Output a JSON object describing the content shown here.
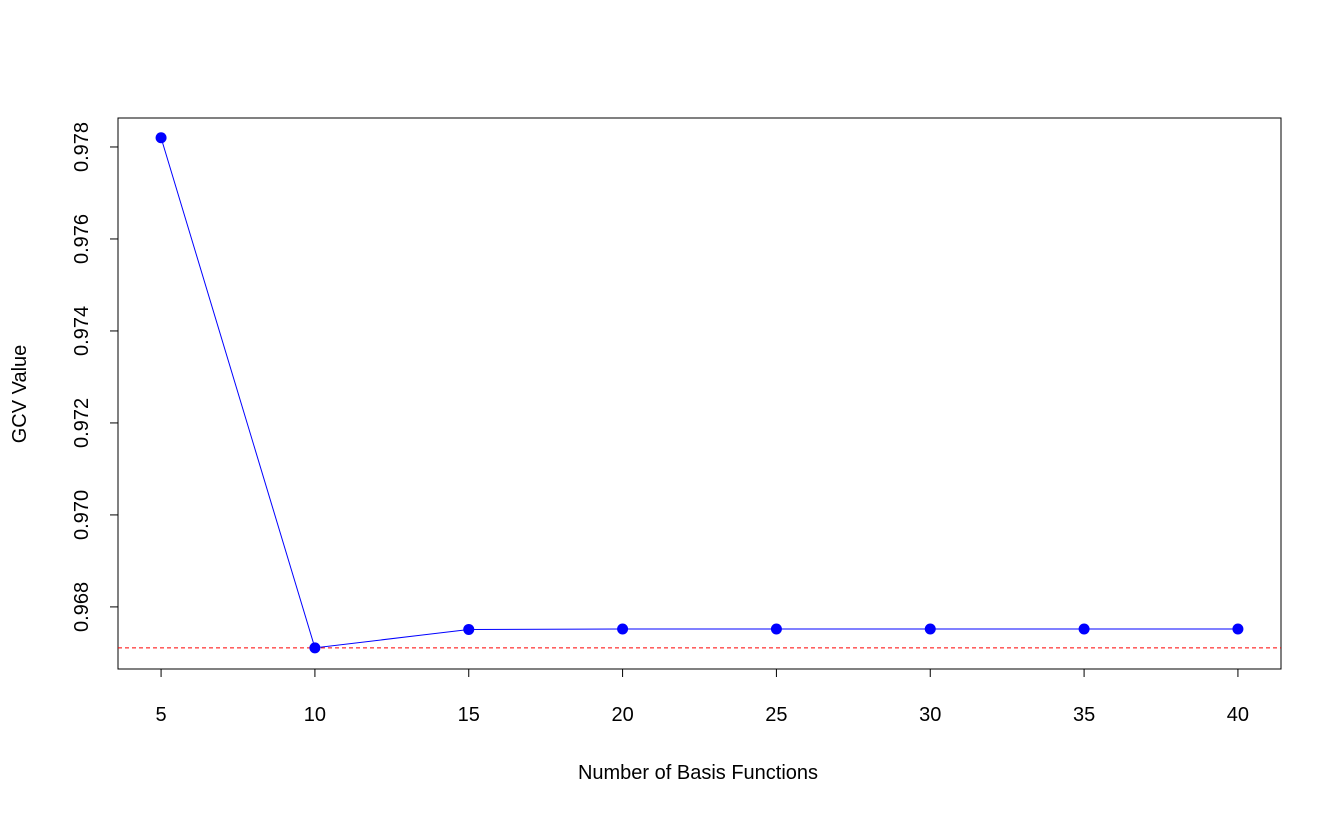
{
  "chart_data": {
    "type": "line",
    "xlabel": "Number of Basis Functions",
    "ylabel": "GCV Value",
    "x": [
      5,
      10,
      15,
      20,
      25,
      30,
      35,
      40
    ],
    "series": [
      {
        "color": "#0000ff",
        "values": [
          0.9782,
          0.96711,
          0.96751,
          0.96752,
          0.96752,
          0.96752,
          0.96752,
          0.96752
        ]
      }
    ],
    "hline": {
      "value": 0.96711,
      "color": "#ff0000",
      "dashed": true
    },
    "xlim": [
      3.6,
      41.4
    ],
    "ylim": [
      0.96665,
      0.97863
    ],
    "xticks": [
      5,
      10,
      15,
      20,
      25,
      30,
      35,
      40
    ],
    "yticks": [
      0.968,
      {
        "value": 0.97,
        "label": "0.970"
      },
      0.972,
      0.974,
      0.976,
      0.978
    ]
  }
}
